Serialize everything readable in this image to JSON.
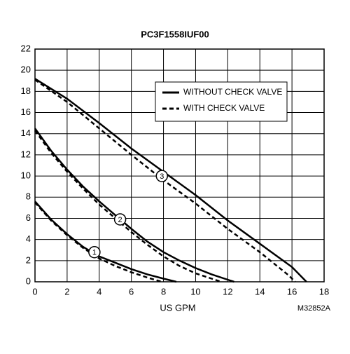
{
  "chart_data": {
    "type": "line",
    "title": "PC3F1558IUF00",
    "x_label": "US GPM",
    "note": "M32852A",
    "xlim": [
      0,
      18
    ],
    "xticks": [
      0,
      2,
      4,
      6,
      8,
      10,
      12,
      14,
      16,
      18
    ],
    "ylim": [
      0,
      22
    ],
    "yticks": [
      0,
      2,
      4,
      6,
      8,
      10,
      12,
      14,
      16,
      18,
      20,
      22
    ],
    "grid": true,
    "color": "#000000",
    "legend": [
      {
        "name": "WITHOUT CHECK VALVE",
        "dashed": false
      },
      {
        "name": "WITH CHECK VALVE",
        "dashed": true
      }
    ],
    "series": [
      {
        "legend": 0,
        "x": [
          0,
          1,
          2,
          3,
          4,
          5,
          6,
          7,
          8,
          8.8
        ],
        "values": [
          7.6,
          5.9,
          4.5,
          3.3,
          2.4,
          1.8,
          1.2,
          0.7,
          0.3,
          0
        ]
      },
      {
        "legend": 1,
        "x": [
          0,
          1,
          2,
          3,
          4,
          5,
          6,
          7,
          7.9
        ],
        "values": [
          7.5,
          5.8,
          4.4,
          3.2,
          2.2,
          1.5,
          0.9,
          0.4,
          0
        ]
      },
      {
        "legend": 0,
        "x": [
          0,
          1,
          2,
          3,
          4,
          5,
          6,
          7,
          8,
          9,
          10,
          11,
          12,
          12.4
        ],
        "values": [
          14.5,
          12.4,
          10.6,
          9.0,
          7.6,
          6.3,
          5.0,
          3.8,
          2.8,
          2.0,
          1.3,
          0.7,
          0.2,
          0
        ]
      },
      {
        "legend": 1,
        "x": [
          0,
          1,
          2,
          3,
          4,
          5,
          6,
          7,
          8,
          9,
          10,
          11,
          11.6
        ],
        "values": [
          14.3,
          12.2,
          10.4,
          8.8,
          7.3,
          6.0,
          4.7,
          3.5,
          2.4,
          1.5,
          0.8,
          0.3,
          0
        ]
      },
      {
        "legend": 0,
        "x": [
          0,
          2,
          4,
          6,
          8,
          10,
          12,
          14,
          16,
          16.9
        ],
        "values": [
          19.2,
          17.3,
          15.0,
          12.6,
          10.4,
          8.2,
          5.8,
          3.6,
          1.4,
          0
        ]
      },
      {
        "legend": 1,
        "x": [
          0,
          2,
          4,
          6,
          8,
          10,
          12,
          14,
          15.8,
          16.2
        ],
        "values": [
          19.1,
          17.0,
          14.5,
          12.0,
          9.6,
          7.4,
          5.0,
          2.8,
          0.6,
          0
        ]
      }
    ],
    "annotations": [
      {
        "text": "1",
        "x": 3.7,
        "y": 2.8
      },
      {
        "text": "2",
        "x": 5.3,
        "y": 5.9
      },
      {
        "text": "3",
        "x": 7.9,
        "y": 10
      }
    ]
  }
}
